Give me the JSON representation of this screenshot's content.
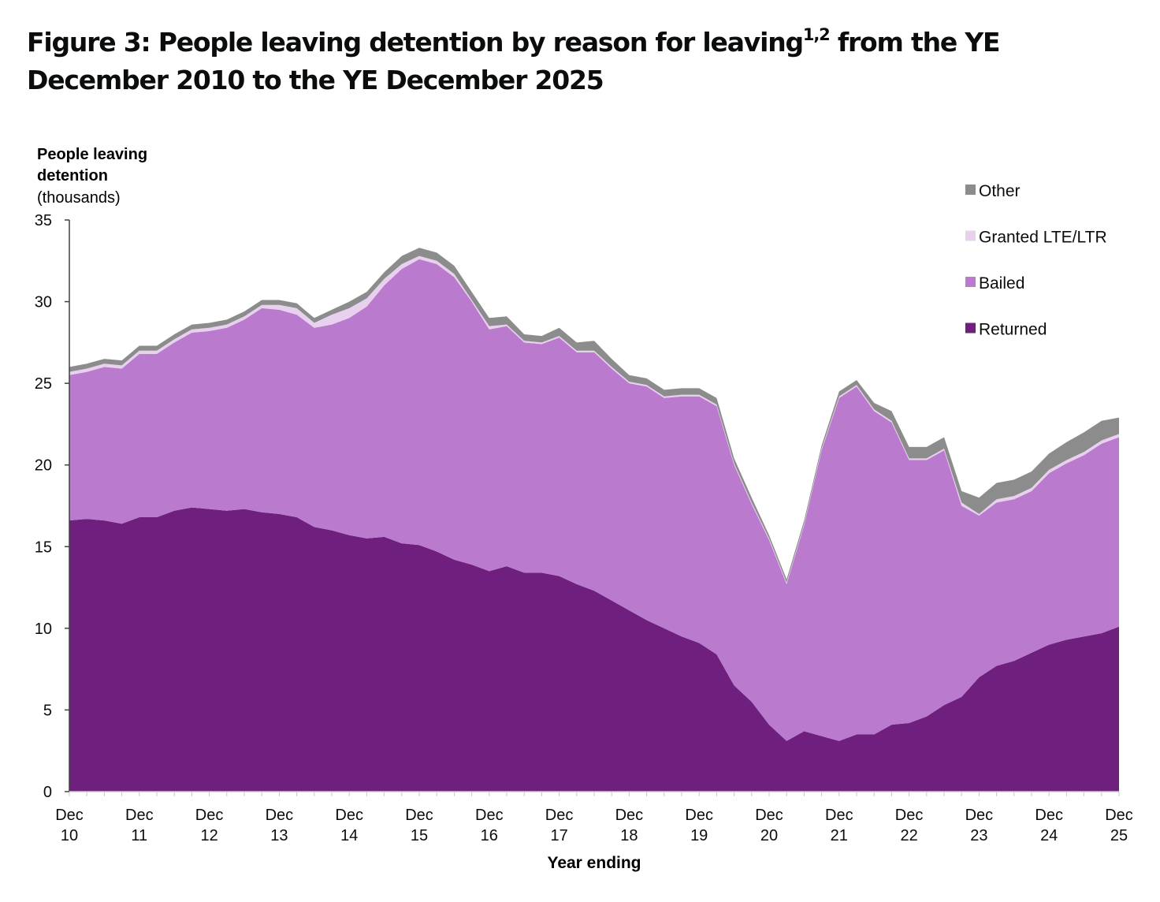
{
  "title": {
    "main": "Figure 3: People leaving detention by reason for leaving",
    "superscript": "1,2",
    "rest": " from the YE December 2010 to the YE December 2025"
  },
  "chart_data": {
    "type": "area",
    "stacked": true,
    "title": "Figure 3: People leaving detention by reason for leaving from the YE December 2010 to the YE December 2025",
    "ylabel_line1": "People leaving",
    "ylabel_line2": "detention",
    "ylabel_unit": "(thousands)",
    "xlabel": "Year ending",
    "ylim": [
      0,
      35
    ],
    "yticks": [
      0,
      5,
      10,
      15,
      20,
      25,
      30,
      35
    ],
    "x_tick_labels": [
      [
        "Dec",
        "10"
      ],
      [
        "Dec",
        "11"
      ],
      [
        "Dec",
        "12"
      ],
      [
        "Dec",
        "13"
      ],
      [
        "Dec",
        "14"
      ],
      [
        "Dec",
        "15"
      ],
      [
        "Dec",
        "16"
      ],
      [
        "Dec",
        "17"
      ],
      [
        "Dec",
        "18"
      ],
      [
        "Dec",
        "19"
      ],
      [
        "Dec",
        "20"
      ],
      [
        "Dec",
        "21"
      ],
      [
        "Dec",
        "22"
      ],
      [
        "Dec",
        "23"
      ],
      [
        "Dec",
        "24"
      ],
      [
        "Dec",
        "25"
      ]
    ],
    "x_period": "quarterly, year ending Dec 2010 to year ending Dec 2025",
    "grid": false,
    "legend_position": "top-right",
    "series": [
      {
        "name": "Returned",
        "color": "#6f207e",
        "values": [
          16.6,
          16.7,
          16.6,
          16.4,
          16.8,
          16.8,
          17.2,
          17.4,
          17.3,
          17.2,
          17.3,
          17.1,
          17.0,
          16.8,
          16.2,
          16.0,
          15.7,
          15.5,
          15.6,
          15.2,
          15.1,
          14.7,
          14.2,
          13.9,
          13.5,
          13.8,
          13.4,
          13.4,
          13.2,
          12.7,
          12.3,
          11.7,
          11.1,
          10.5,
          10.0,
          9.5,
          9.1,
          8.4,
          6.5,
          5.5,
          4.1,
          3.1,
          3.7,
          3.4,
          3.1,
          3.5,
          3.5,
          4.1,
          4.2,
          4.6,
          5.3,
          5.8,
          7.0,
          7.7,
          8.0,
          8.5,
          9.0,
          9.3,
          9.5,
          9.7,
          10.1
        ]
      },
      {
        "name": "Bailed",
        "color": "#ba7bce",
        "values": [
          8.9,
          9.0,
          9.4,
          9.5,
          10.0,
          10.0,
          10.3,
          10.7,
          10.9,
          11.2,
          11.6,
          12.5,
          12.5,
          12.4,
          12.2,
          12.6,
          13.3,
          14.2,
          15.4,
          16.8,
          17.5,
          17.6,
          17.3,
          16.1,
          14.8,
          14.7,
          14.1,
          14.0,
          14.6,
          14.2,
          14.6,
          14.2,
          13.9,
          14.3,
          14.1,
          14.7,
          15.1,
          15.2,
          13.5,
          12.1,
          11.3,
          9.6,
          12.6,
          17.5,
          21.0,
          21.3,
          19.8,
          18.5,
          16.1,
          15.7,
          15.6,
          11.7,
          9.9,
          10.0,
          9.9,
          9.9,
          10.5,
          10.8,
          11.1,
          11.6,
          11.6
        ]
      },
      {
        "name": "Granted LTE/LTR",
        "color": "#e8d0ef",
        "values": [
          0.2,
          0.2,
          0.2,
          0.2,
          0.2,
          0.2,
          0.2,
          0.2,
          0.2,
          0.2,
          0.2,
          0.2,
          0.3,
          0.4,
          0.3,
          0.6,
          0.6,
          0.5,
          0.4,
          0.3,
          0.2,
          0.2,
          0.2,
          0.1,
          0.2,
          0.1,
          0.1,
          0.1,
          0.1,
          0.1,
          0.1,
          0.1,
          0.1,
          0.1,
          0.1,
          0.1,
          0.1,
          0.1,
          0.1,
          0.1,
          0.1,
          0.1,
          0.1,
          0.1,
          0.1,
          0.1,
          0.1,
          0.1,
          0.1,
          0.1,
          0.1,
          0.2,
          0.1,
          0.2,
          0.2,
          0.2,
          0.2,
          0.2,
          0.2,
          0.2,
          0.2
        ]
      },
      {
        "name": "Other",
        "color": "#8c8c8c",
        "values": [
          0.3,
          0.3,
          0.3,
          0.3,
          0.3,
          0.3,
          0.3,
          0.3,
          0.3,
          0.3,
          0.3,
          0.3,
          0.3,
          0.3,
          0.3,
          0.3,
          0.4,
          0.4,
          0.4,
          0.5,
          0.5,
          0.5,
          0.5,
          0.5,
          0.5,
          0.5,
          0.4,
          0.4,
          0.5,
          0.5,
          0.6,
          0.5,
          0.4,
          0.4,
          0.4,
          0.4,
          0.4,
          0.4,
          0.3,
          0.3,
          0.2,
          0.2,
          0.2,
          0.2,
          0.3,
          0.3,
          0.4,
          0.6,
          0.7,
          0.7,
          0.7,
          0.7,
          1.0,
          1.0,
          1.0,
          1.0,
          1.0,
          1.1,
          1.2,
          1.2,
          1.0
        ]
      }
    ],
    "legend_order": [
      "Other",
      "Granted LTE/LTR",
      "Bailed",
      "Returned"
    ]
  }
}
